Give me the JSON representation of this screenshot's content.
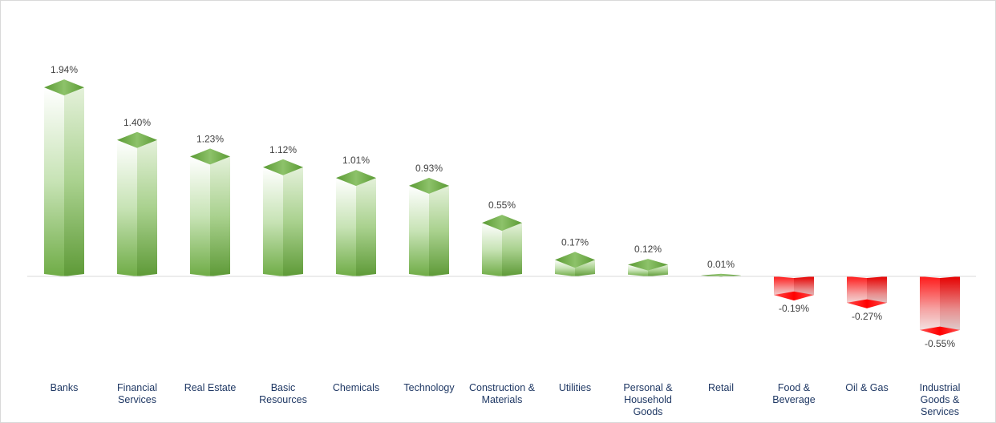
{
  "chart_data": {
    "type": "bar",
    "categories": [
      "Banks",
      "Financial\nServices",
      "Real Estate",
      "Basic\nResources",
      "Chemicals",
      "Technology",
      "Construction &\nMaterials",
      "Utilities",
      "Personal &\nHousehold\nGoods",
      "Retail",
      "Food &\nBeverage",
      "Oil & Gas",
      "Industrial\nGoods &\nServices"
    ],
    "values": [
      1.94,
      1.4,
      1.23,
      1.12,
      1.01,
      0.93,
      0.55,
      0.17,
      0.12,
      0.01,
      -0.19,
      -0.27,
      -0.55
    ],
    "data_labels": [
      "1.94%",
      "1.40%",
      "1.23%",
      "1.12%",
      "1.01%",
      "0.93%",
      "0.55%",
      "0.17%",
      "0.12%",
      "0.01%",
      "-0.19%",
      "-0.27%",
      "-0.55%"
    ],
    "title": "",
    "xlabel": "",
    "ylabel": "",
    "grid": false,
    "legend": "none",
    "colors": {
      "positive": "#70ad47",
      "negative": "#ff0000",
      "axis": "#d9d9d9",
      "category_text": "#1f3864",
      "label_text": "#404040"
    }
  }
}
